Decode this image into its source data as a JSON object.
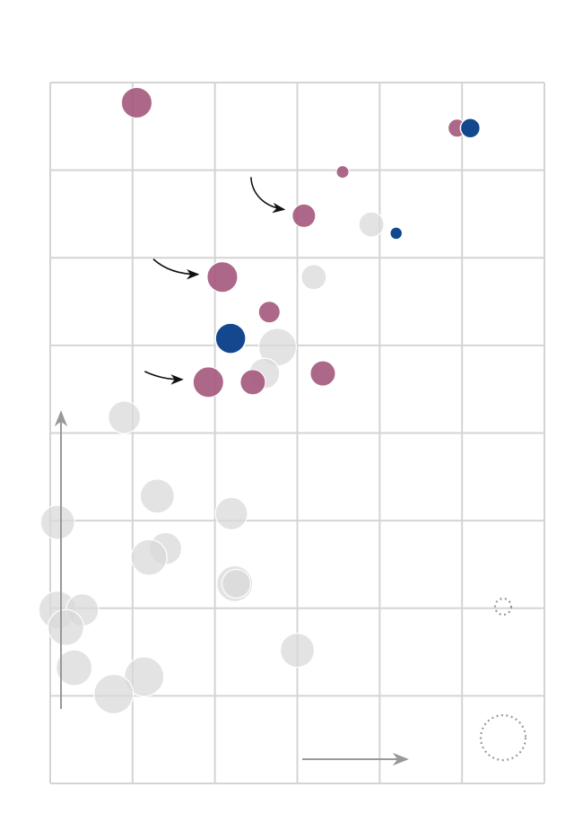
{
  "chart_data": {
    "type": "scatter",
    "title": "",
    "xlabel": "",
    "ylabel": "",
    "grid": true,
    "grid_columns": 6,
    "grid_rows": 8,
    "xlim": [
      0,
      6
    ],
    "ylim": [
      0,
      8
    ],
    "axis_arrows": [
      "x",
      "y"
    ],
    "size_legend": [
      "small",
      "large"
    ],
    "colors": {
      "highlight": "#a4577c",
      "accent": "#13488f",
      "muted": "#d9d9d9",
      "grid": "#d4d4d4",
      "arrow": "#999999"
    },
    "series": [
      {
        "group": "highlight",
        "points": [
          {
            "x": 1.05,
            "y": 7.77,
            "size": 17
          },
          {
            "x": 4.94,
            "y": 7.48,
            "size": 10
          },
          {
            "x": 3.55,
            "y": 6.98,
            "size": 7
          },
          {
            "x": 3.08,
            "y": 6.48,
            "size": 13
          },
          {
            "x": 2.09,
            "y": 5.78,
            "size": 17
          },
          {
            "x": 2.66,
            "y": 5.38,
            "size": 12
          },
          {
            "x": 1.92,
            "y": 4.58,
            "size": 17
          },
          {
            "x": 2.46,
            "y": 4.58,
            "size": 14
          },
          {
            "x": 3.31,
            "y": 4.68,
            "size": 14
          }
        ]
      },
      {
        "group": "accent",
        "points": [
          {
            "x": 5.1,
            "y": 7.48,
            "size": 11
          },
          {
            "x": 4.2,
            "y": 6.28,
            "size": 7
          },
          {
            "x": 2.19,
            "y": 5.08,
            "size": 17
          }
        ]
      },
      {
        "group": "muted",
        "points": [
          {
            "x": 3.9,
            "y": 6.38,
            "size": 14
          },
          {
            "x": 3.2,
            "y": 5.78,
            "size": 14
          },
          {
            "x": 2.76,
            "y": 4.98,
            "size": 21
          },
          {
            "x": 2.6,
            "y": 4.68,
            "size": 17
          },
          {
            "x": 0.9,
            "y": 4.18,
            "size": 18
          },
          {
            "x": 1.3,
            "y": 3.28,
            "size": 19
          },
          {
            "x": 2.2,
            "y": 3.08,
            "size": 18
          },
          {
            "x": 0.09,
            "y": 2.98,
            "size": 19
          },
          {
            "x": 1.4,
            "y": 2.68,
            "size": 18
          },
          {
            "x": 1.2,
            "y": 2.58,
            "size": 20
          },
          {
            "x": 2.24,
            "y": 2.28,
            "size": 20
          },
          {
            "x": 2.26,
            "y": 2.28,
            "size": 16
          },
          {
            "x": 0.09,
            "y": 1.98,
            "size": 21
          },
          {
            "x": 0.39,
            "y": 1.98,
            "size": 18
          },
          {
            "x": 0.19,
            "y": 1.78,
            "size": 20
          },
          {
            "x": 0.29,
            "y": 1.32,
            "size": 20
          },
          {
            "x": 1.14,
            "y": 1.22,
            "size": 22
          },
          {
            "x": 0.77,
            "y": 1.02,
            "size": 22
          },
          {
            "x": 3.0,
            "y": 1.52,
            "size": 19
          }
        ]
      }
    ],
    "annotations": [
      {
        "kind": "curved-arrow",
        "target_x": 3.08,
        "target_y": 6.48
      },
      {
        "kind": "curved-arrow",
        "target_x": 2.09,
        "target_y": 5.78
      },
      {
        "kind": "curved-arrow",
        "target_x": 1.92,
        "target_y": 4.58
      }
    ]
  }
}
